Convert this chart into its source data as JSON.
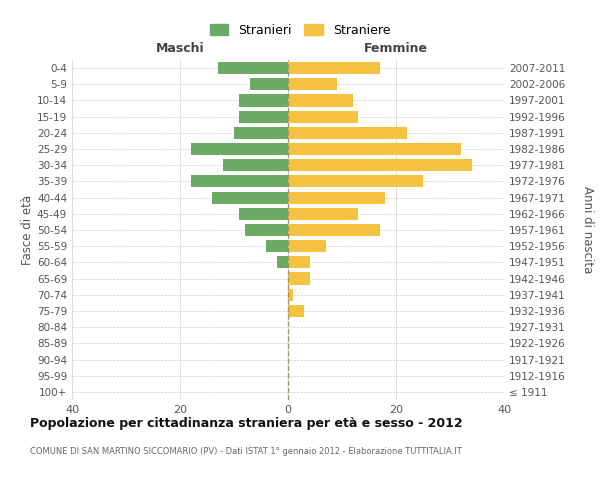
{
  "age_groups": [
    "100+",
    "95-99",
    "90-94",
    "85-89",
    "80-84",
    "75-79",
    "70-74",
    "65-69",
    "60-64",
    "55-59",
    "50-54",
    "45-49",
    "40-44",
    "35-39",
    "30-34",
    "25-29",
    "20-24",
    "15-19",
    "10-14",
    "5-9",
    "0-4"
  ],
  "birth_years": [
    "≤ 1911",
    "1912-1916",
    "1917-1921",
    "1922-1926",
    "1927-1931",
    "1932-1936",
    "1937-1941",
    "1942-1946",
    "1947-1951",
    "1952-1956",
    "1957-1961",
    "1962-1966",
    "1967-1971",
    "1972-1976",
    "1977-1981",
    "1982-1986",
    "1987-1991",
    "1992-1996",
    "1997-2001",
    "2002-2006",
    "2007-2011"
  ],
  "males": [
    0,
    0,
    0,
    0,
    0,
    0,
    0,
    0,
    2,
    4,
    8,
    9,
    14,
    18,
    12,
    18,
    10,
    9,
    9,
    7,
    13
  ],
  "females": [
    0,
    0,
    0,
    0,
    0,
    3,
    1,
    4,
    4,
    7,
    17,
    13,
    18,
    25,
    34,
    32,
    22,
    13,
    12,
    9,
    17
  ],
  "male_color": "#6aaa64",
  "female_color": "#f5c242",
  "title": "Popolazione per cittadinanza straniera per età e sesso - 2012",
  "subtitle": "COMUNE DI SAN MARTINO SICCOMARIO (PV) - Dati ISTAT 1° gennaio 2012 - Elaborazione TUTTITALIA.IT",
  "xlabel_left": "Maschi",
  "xlabel_right": "Femmine",
  "ylabel_left": "Fasce di età",
  "ylabel_right": "Anni di nascita",
  "legend_male": "Stranieri",
  "legend_female": "Straniere",
  "xlim": 40,
  "background_color": "#ffffff",
  "grid_color": "#d0d0d0"
}
